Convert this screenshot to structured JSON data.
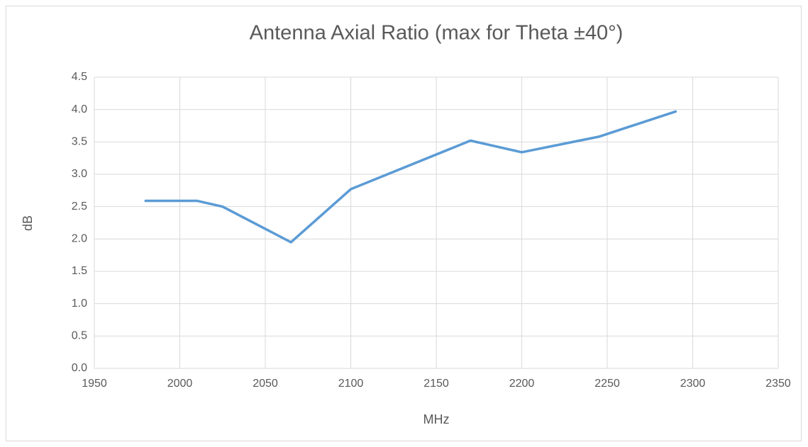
{
  "chart_data": {
    "type": "line",
    "title": "Antenna Axial Ratio (max for Theta ±40°)",
    "xlabel": "MHz",
    "ylabel": "dB",
    "x": [
      1980,
      2010,
      2025,
      2065,
      2100,
      2170,
      2200,
      2245,
      2290
    ],
    "series": [
      {
        "name": "Axial Ratio",
        "color": "#5b9bd5",
        "values": [
          2.59,
          2.59,
          2.5,
          1.95,
          2.77,
          3.52,
          3.34,
          3.58,
          3.97
        ]
      }
    ],
    "xlim": [
      1950,
      2350
    ],
    "xticks": [
      1950,
      2000,
      2050,
      2100,
      2150,
      2200,
      2250,
      2300,
      2350
    ],
    "ylim": [
      0,
      4.5
    ],
    "yticks": [
      {
        "value": 0,
        "label": "0.0"
      },
      0.5,
      {
        "value": 1,
        "label": "1.0"
      },
      1.5,
      {
        "value": 2,
        "label": "2.0"
      },
      2.5,
      {
        "value": 3,
        "label": "3.0"
      },
      3.5,
      {
        "value": 4,
        "label": "4.0"
      },
      4.5
    ],
    "grid": true
  }
}
